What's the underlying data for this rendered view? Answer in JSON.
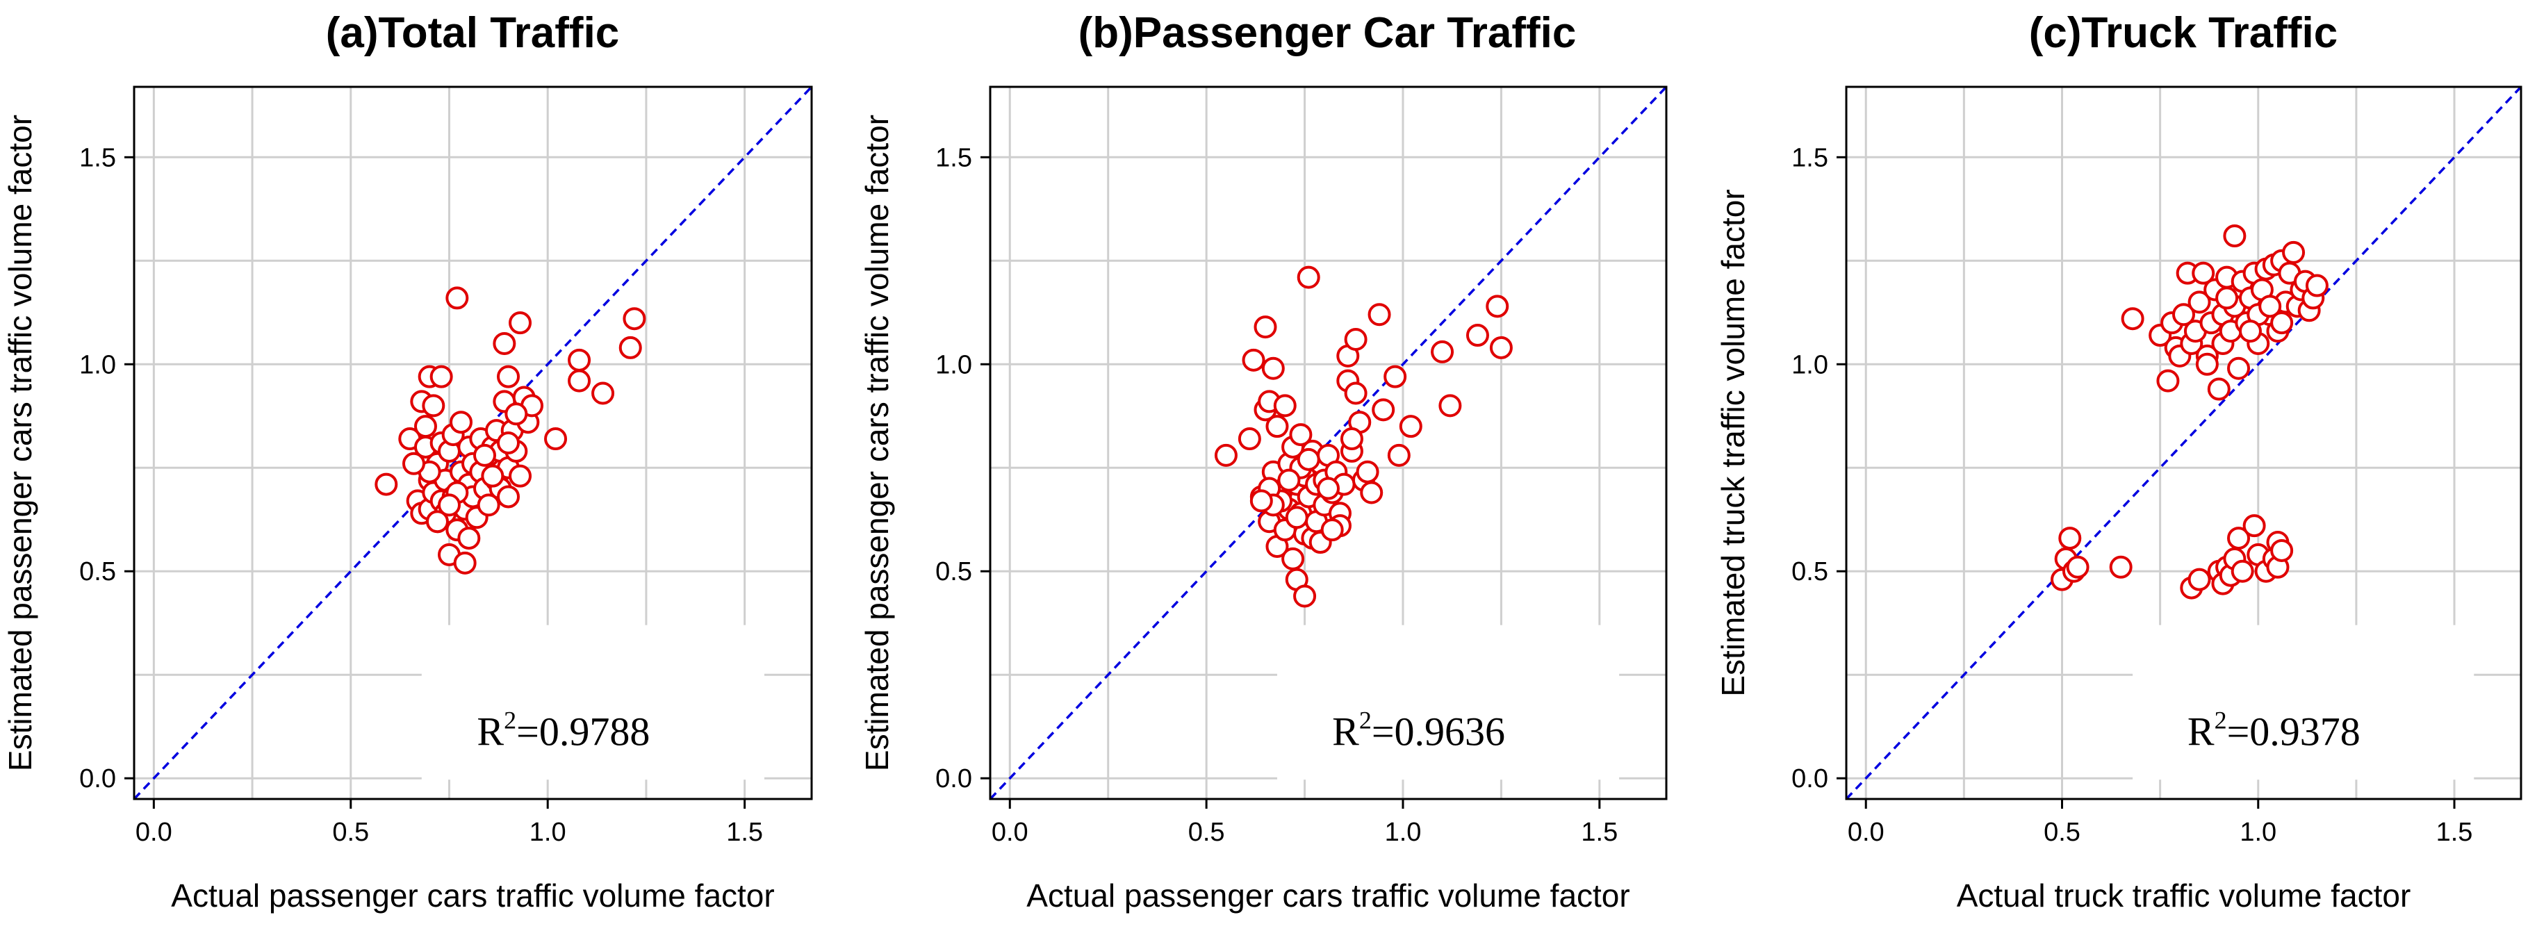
{
  "chart_data": [
    {
      "type": "scatter",
      "title": "(a)Total Traffic",
      "xlabel": "Actual passenger cars traffic volume factor",
      "ylabel": "Estimated passenger cars traffic volume factor",
      "xlim": [
        -0.05,
        1.67
      ],
      "ylim": [
        -0.05,
        1.67
      ],
      "xticks": [
        0.0,
        0.5,
        1.0,
        1.5
      ],
      "yticks": [
        0.0,
        0.5,
        1.0,
        1.5
      ],
      "tick_labels": [
        "0.0",
        "0.5",
        "1.0",
        "1.5"
      ],
      "grid": true,
      "reference_line": "y = x",
      "annotation": {
        "prefix": "R",
        "sup": "2",
        "value": "=0.9788"
      },
      "series": [
        {
          "name": "observations",
          "marker": "open circle",
          "x": [
            0.59,
            0.65,
            0.67,
            0.68,
            0.68,
            0.69,
            0.7,
            0.7,
            0.7,
            0.71,
            0.71,
            0.72,
            0.72,
            0.73,
            0.73,
            0.73,
            0.74,
            0.74,
            0.75,
            0.75,
            0.76,
            0.76,
            0.77,
            0.77,
            0.78,
            0.78,
            0.79,
            0.79,
            0.8,
            0.8,
            0.81,
            0.81,
            0.82,
            0.83,
            0.83,
            0.84,
            0.85,
            0.85,
            0.86,
            0.87,
            0.87,
            0.88,
            0.88,
            0.89,
            0.89,
            0.9,
            0.9,
            0.9,
            0.91,
            0.92,
            0.93,
            0.93,
            0.94,
            0.95,
            0.96,
            1.02,
            1.08,
            1.08,
            1.14,
            1.21,
            1.22,
            0.8,
            0.77,
            0.7,
            0.72,
            0.75,
            0.69,
            0.84,
            0.66,
            0.86,
            0.9,
            0.92
          ],
          "y": [
            0.71,
            0.82,
            0.67,
            0.91,
            0.64,
            0.8,
            0.97,
            0.72,
            0.65,
            0.69,
            0.9,
            0.76,
            0.62,
            0.81,
            0.67,
            0.97,
            0.72,
            0.64,
            0.79,
            0.54,
            0.68,
            0.83,
            1.16,
            0.6,
            0.74,
            0.86,
            0.65,
            0.52,
            0.71,
            0.8,
            0.68,
            0.76,
            0.63,
            0.74,
            0.82,
            0.7,
            0.78,
            0.66,
            0.8,
            0.72,
            0.84,
            0.7,
            0.79,
            0.91,
            1.05,
            0.75,
            0.97,
            0.68,
            0.84,
            0.79,
            1.1,
            0.73,
            0.92,
            0.86,
            0.9,
            0.82,
            1.01,
            0.96,
            0.93,
            1.04,
            1.11,
            0.58,
            0.69,
            0.74,
            0.62,
            0.66,
            0.85,
            0.78,
            0.76,
            0.73,
            0.81,
            0.88
          ]
        }
      ]
    },
    {
      "type": "scatter",
      "title": "(b)Passenger Car Traffic",
      "xlabel": "Actual passenger cars traffic volume factor",
      "ylabel": "Estimated passenger cars traffic volume factor",
      "xlim": [
        -0.05,
        1.67
      ],
      "ylim": [
        -0.05,
        1.67
      ],
      "xticks": [
        0.0,
        0.5,
        1.0,
        1.5
      ],
      "yticks": [
        0.0,
        0.5,
        1.0,
        1.5
      ],
      "tick_labels": [
        "0.0",
        "0.5",
        "1.0",
        "1.5"
      ],
      "grid": true,
      "reference_line": "y = x",
      "annotation": {
        "prefix": "R",
        "sup": "2",
        "value": "=0.9636"
      },
      "series": [
        {
          "name": "observations",
          "marker": "open circle",
          "x": [
            0.55,
            0.61,
            0.62,
            0.64,
            0.65,
            0.65,
            0.66,
            0.66,
            0.67,
            0.67,
            0.68,
            0.68,
            0.69,
            0.7,
            0.7,
            0.71,
            0.71,
            0.72,
            0.72,
            0.73,
            0.73,
            0.74,
            0.74,
            0.75,
            0.75,
            0.75,
            0.76,
            0.76,
            0.77,
            0.77,
            0.78,
            0.78,
            0.79,
            0.8,
            0.8,
            0.81,
            0.82,
            0.83,
            0.84,
            0.85,
            0.86,
            0.86,
            0.87,
            0.88,
            0.88,
            0.89,
            0.9,
            0.92,
            0.94,
            0.95,
            0.98,
            0.99,
            1.02,
            1.1,
            1.12,
            1.19,
            1.24,
            1.25,
            0.73,
            0.69,
            0.79,
            0.66,
            0.84,
            0.74,
            0.67,
            0.71,
            0.76,
            0.82,
            0.87,
            0.91,
            0.81,
            0.64
          ],
          "y": [
            0.78,
            0.82,
            1.01,
            0.68,
            0.89,
            1.09,
            0.62,
            0.91,
            0.74,
            0.99,
            0.56,
            0.85,
            0.69,
            0.9,
            0.6,
            0.76,
            0.65,
            0.8,
            0.53,
            0.71,
            0.48,
            0.64,
            0.83,
            0.59,
            0.44,
            0.73,
            1.21,
            0.68,
            0.79,
            0.58,
            0.71,
            0.62,
            0.76,
            0.66,
            0.72,
            0.78,
            0.69,
            0.74,
            0.64,
            0.71,
            0.96,
            1.02,
            0.79,
            0.93,
            1.06,
            0.86,
            0.72,
            0.69,
            1.12,
            0.89,
            0.97,
            0.78,
            0.85,
            1.03,
            0.9,
            1.07,
            1.14,
            1.04,
            0.63,
            0.67,
            0.57,
            0.7,
            0.61,
            0.75,
            0.66,
            0.72,
            0.77,
            0.6,
            0.82,
            0.74,
            0.7,
            0.67
          ]
        }
      ]
    },
    {
      "type": "scatter",
      "title": "(c)Truck Traffic",
      "xlabel": "Actual truck traffic volume factor",
      "ylabel": "Estimated truck traffic volume factor",
      "xlim": [
        -0.05,
        1.67
      ],
      "ylim": [
        -0.05,
        1.67
      ],
      "xticks": [
        0.0,
        0.5,
        1.0,
        1.5
      ],
      "yticks": [
        0.0,
        0.5,
        1.0,
        1.5
      ],
      "tick_labels": [
        "0.0",
        "0.5",
        "1.0",
        "1.5"
      ],
      "grid": true,
      "reference_line": "y = x",
      "annotation": {
        "prefix": "R",
        "sup": "2",
        "value": "=0.9378"
      },
      "series": [
        {
          "name": "observations",
          "marker": "open circle",
          "x": [
            0.5,
            0.51,
            0.52,
            0.53,
            0.54,
            0.65,
            0.83,
            0.85,
            0.9,
            0.91,
            0.92,
            0.93,
            0.94,
            0.95,
            0.96,
            0.99,
            1.0,
            1.02,
            1.04,
            1.05,
            1.05,
            1.06,
            0.68,
            0.75,
            0.77,
            0.78,
            0.79,
            0.8,
            0.81,
            0.82,
            0.83,
            0.84,
            0.85,
            0.86,
            0.87,
            0.88,
            0.89,
            0.9,
            0.91,
            0.91,
            0.92,
            0.93,
            0.94,
            0.94,
            0.95,
            0.96,
            0.97,
            0.98,
            0.99,
            1.0,
            1.01,
            1.02,
            1.03,
            1.04,
            1.05,
            1.06,
            1.07,
            1.08,
            1.09,
            1.1,
            1.11,
            1.12,
            1.13,
            1.14,
            1.15,
            1.0,
            0.98,
            1.03,
            1.06,
            0.87,
            0.92
          ],
          "y": [
            0.48,
            0.53,
            0.58,
            0.5,
            0.51,
            0.51,
            0.46,
            0.48,
            0.5,
            0.47,
            0.51,
            0.49,
            0.53,
            0.58,
            0.5,
            0.61,
            0.54,
            0.5,
            0.53,
            0.57,
            0.51,
            0.55,
            1.11,
            1.07,
            0.96,
            1.1,
            1.04,
            1.02,
            1.12,
            1.22,
            1.05,
            1.08,
            1.15,
            1.22,
            1.02,
            1.1,
            1.18,
            0.94,
            1.12,
            1.05,
            1.21,
            1.08,
            1.31,
            1.14,
            0.99,
            1.2,
            1.1,
            1.16,
            1.22,
            1.05,
            1.18,
            1.23,
            1.12,
            1.24,
            1.08,
            1.25,
            1.15,
            1.22,
            1.27,
            1.14,
            1.18,
            1.2,
            1.13,
            1.16,
            1.19,
            1.12,
            1.08,
            1.14,
            1.1,
            1.0,
            1.16
          ]
        }
      ]
    }
  ],
  "colors": {
    "marker": "#e00000",
    "reference_line": "#0000e0",
    "grid": "#cfcfcf",
    "axes": "#000000"
  }
}
